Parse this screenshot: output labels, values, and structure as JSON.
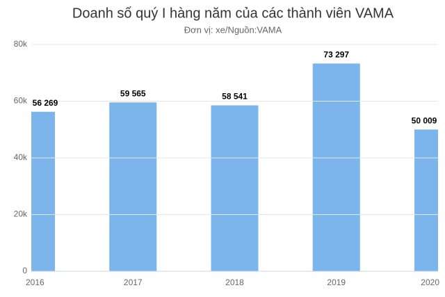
{
  "chart_data": {
    "type": "bar",
    "title": "Doanh số quý I hàng năm của các thành viên VAMA",
    "subtitle": "Đơn vị: xe/Nguồn:VAMA",
    "categories": [
      "2016",
      "2017",
      "2018",
      "2019",
      "2020"
    ],
    "values": [
      56269,
      59565,
      58541,
      73297,
      50009
    ],
    "value_labels": [
      "56 269",
      "59 565",
      "58 541",
      "73 297",
      "50 009"
    ],
    "color": "#7cb5ec",
    "ylim": [
      0,
      80000
    ],
    "yticks": [
      0,
      {
        "value": 20000,
        "label": "20k"
      },
      {
        "value": 40000,
        "label": "40k"
      },
      {
        "value": 60000,
        "label": "60k"
      },
      {
        "value": 80000,
        "label": "80k"
      }
    ],
    "grid": true
  }
}
